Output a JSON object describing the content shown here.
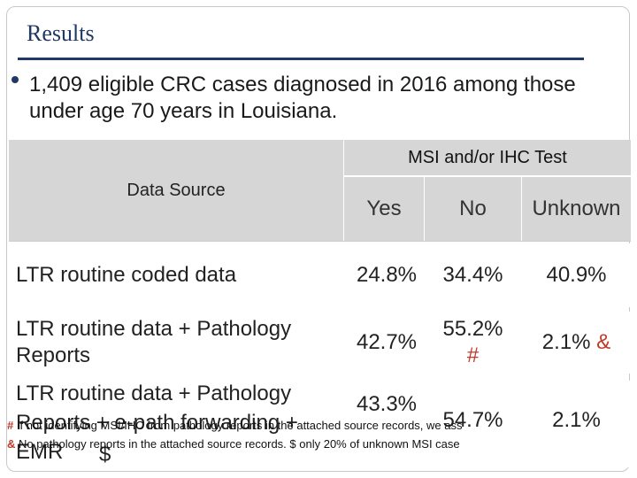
{
  "slide": {
    "title": "Results",
    "bullet": "1,409 eligible CRC cases diagnosed in 2016 among those under age 70 years in Louisiana."
  },
  "table": {
    "header_data_source": "Data Source",
    "header_group": "MSI and/or IHC Test",
    "columns": [
      "Yes",
      "No",
      "Unknown"
    ],
    "rows": [
      {
        "label": "LTR routine coded data",
        "yes": "24.8%",
        "no": "34.4%",
        "unknown": "40.9%"
      },
      {
        "label": "LTR routine data + Pathology Reports",
        "yes": "42.7%",
        "no": "55.2%",
        "no_mark": "#",
        "unknown": "2.1%",
        "unknown_mark": "&"
      },
      {
        "label": "LTR routine data + Pathology Reports + e-path forwarding + EMR",
        "label_mark": "$",
        "yes": "43.3%",
        "no": "54.7%",
        "unknown": "2.1%"
      }
    ]
  },
  "footnotes": [
    {
      "mark": "#",
      "text": "If not identifying MSI/IHC from pathology reports in the attached source records, we ass"
    },
    {
      "mark": "&",
      "text": "No pathology reports in the attached source records. $ only 20% of unknown MSI case"
    }
  ]
}
